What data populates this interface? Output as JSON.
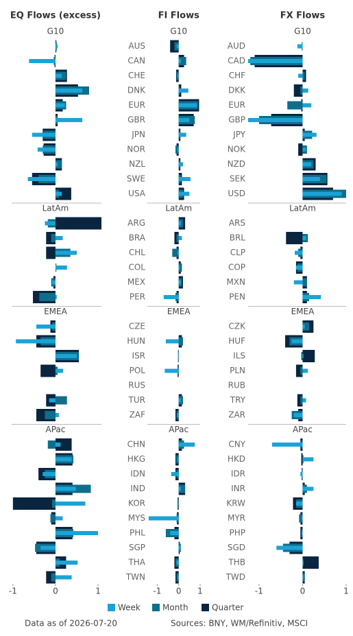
{
  "chart_data": [
    {
      "type": "bar",
      "title": "EQ Flows (excess)",
      "xlim": [
        -1.03,
        1.08
      ],
      "xticks": [
        -1,
        0,
        1
      ],
      "groups": [
        {
          "name": "G10",
          "categories": [
            null,
            null,
            null,
            null,
            null,
            null,
            null,
            null,
            null,
            null,
            null
          ]
        },
        {
          "name": "LatAm",
          "categories": [
            null,
            null,
            null,
            null,
            null,
            null
          ]
        },
        {
          "name": "EMEA",
          "categories": [
            null,
            null,
            null,
            null,
            null,
            null,
            null
          ]
        },
        {
          "name": "APac",
          "categories": [
            null,
            null,
            null,
            null,
            null,
            null,
            null,
            null,
            null,
            null
          ]
        }
      ],
      "series": [
        {
          "color": "#1ba3d6",
          "values": [
            0.05,
            -0.62,
            0.15,
            0.63,
            0.22,
            0.63,
            -0.55,
            -0.42,
            0.05,
            -0.65,
            0.15,
            -0.25,
            0.17,
            0.5,
            0.27,
            -0.08,
            0.03,
            -0.45,
            -0.93,
            0.5,
            0.18,
            0,
            -0.15,
            0.08,
            0.12,
            0.38,
            -0.3,
            0.48,
            0.7,
            0.17,
            1.0,
            -0.35,
            0.52,
            0.38
          ]
        },
        {
          "color": "#0f6e8c",
          "values": [
            0.03,
            -0.04,
            0.25,
            0.79,
            0.25,
            0.05,
            -0.28,
            -0.3,
            0.15,
            -0.4,
            0.08,
            -0.18,
            -0.1,
            0.35,
            0.02,
            -0.1,
            -0.38,
            -0.08,
            -0.35,
            0.55,
            0.05,
            0,
            0.27,
            -0.25,
            -0.18,
            0.42,
            -0.25,
            0.83,
            -0.08,
            -0.12,
            0.42,
            -0.48,
            0.1,
            -0.1
          ]
        },
        {
          "color": "#0a2540",
          "values": [
            0.02,
            -0.02,
            0.27,
            0.53,
            0.17,
            0.05,
            -0.3,
            -0.28,
            0.15,
            -0.55,
            0.37,
            1.08,
            -0.22,
            -0.22,
            0,
            -0.05,
            -0.53,
            -0.12,
            -0.45,
            0.55,
            -0.35,
            0,
            -0.22,
            -0.45,
            0.38,
            0.4,
            -0.4,
            0.4,
            -1.0,
            -0.1,
            0.4,
            -0.45,
            0.25,
            -0.22
          ]
        }
      ]
    },
    {
      "type": "bar",
      "title": "FI Flows",
      "xlim": [
        -1.46,
        1.0
      ],
      "xticks": [
        -1,
        0,
        1
      ],
      "groups": [
        {
          "name": "G10",
          "categories": [
            "AUS",
            "CAN",
            "CHE",
            "DNK",
            "EUR",
            "GBR",
            "JPN",
            "NOR",
            "NZL",
            "SWE",
            "USA"
          ]
        },
        {
          "name": "LatAm",
          "categories": [
            "ARG",
            "BRA",
            "CHL",
            "COL",
            "MEX",
            "PER"
          ]
        },
        {
          "name": "EMEA",
          "categories": [
            "CZE",
            "HUN",
            "ISR",
            "POL",
            "RUS",
            "TUR",
            "ZAF"
          ]
        },
        {
          "name": "APac",
          "categories": [
            "CHN",
            "HKG",
            "IDN",
            "IND",
            "KOR",
            "MYS",
            "PHL",
            "SGP",
            "THA",
            "TWN"
          ]
        }
      ],
      "series": [
        {
          "color": "#1ba3d6",
          "values": [
            -0.1,
            0.1,
            -0.05,
            0.45,
            0.85,
            0.5,
            0.35,
            -0.05,
            0.2,
            0.55,
            0.5,
            0.1,
            0.15,
            -0.05,
            0.05,
            0.1,
            -0.7,
            0,
            -0.6,
            -0.03,
            -0.65,
            0,
            0.1,
            -0.08,
            0.75,
            -0.05,
            -0.35,
            0.1,
            -0.02,
            -1.4,
            -0.4,
            0.1,
            -0.1,
            -0.05
          ]
        },
        {
          "color": "#0f6e8c",
          "values": [
            -0.2,
            0.35,
            -0.1,
            0.05,
            0.9,
            0.75,
            0.05,
            -0.15,
            0.05,
            0.1,
            0.2,
            0.2,
            -0.1,
            -0.3,
            0.15,
            0.15,
            -0.15,
            0,
            0.2,
            -0.02,
            -0.03,
            0,
            0.2,
            -0.1,
            0.25,
            -0.12,
            -0.1,
            0.3,
            -0.03,
            -0.1,
            -0.6,
            0.1,
            -0.15,
            -0.1
          ]
        },
        {
          "color": "#0a2540",
          "values": [
            -0.4,
            0.25,
            -0.12,
            0.12,
            0.95,
            0.7,
            0.08,
            -0.1,
            0.08,
            0.15,
            0.25,
            0.3,
            -0.2,
            -0.1,
            0.1,
            0.2,
            -0.1,
            0,
            0.15,
            -0.03,
            -0.05,
            0,
            0.15,
            -0.15,
            0.15,
            -0.15,
            -0.15,
            0.3,
            -0.05,
            -0.08,
            -0.2,
            0.05,
            -0.2,
            -0.15
          ]
        }
      ]
    },
    {
      "type": "bar",
      "title": "FX Flows",
      "xlim": [
        -1.25,
        1.0
      ],
      "xticks": [
        -1,
        0,
        1
      ],
      "groups": [
        {
          "name": "G10",
          "categories": [
            "AUD",
            "CAD",
            "CHF",
            "DKK",
            "EUR",
            "GBP",
            "JPY",
            "NOK",
            "NZD",
            "SEK",
            "USD"
          ]
        },
        {
          "name": "LatAm",
          "categories": [
            "ARS",
            "BRL",
            "CLP",
            "COP",
            "MXN",
            "PEN"
          ]
        },
        {
          "name": "EMEA",
          "categories": [
            "CZK",
            "HUF",
            "ILS",
            "PLN",
            "RUB",
            "TRY",
            "ZAR"
          ]
        },
        {
          "name": "APac",
          "categories": [
            "CNY",
            "HKD",
            "IDR",
            "INR",
            "KRW",
            "MYR",
            "PHP",
            "SGD",
            "THB",
            "TWD"
          ]
        }
      ],
      "series": [
        {
          "color": "#1ba3d6",
          "values": [
            -0.12,
            -1.25,
            -0.1,
            0.13,
            0.2,
            -1.25,
            0.32,
            0.07,
            0.2,
            0.4,
            0.9,
            0,
            0.08,
            -0.18,
            -0.15,
            -0.2,
            0.42,
            0.05,
            -0.25,
            0.02,
            0.12,
            0,
            0.08,
            -0.2,
            -0.7,
            0.25,
            -0.05,
            0.25,
            -0.15,
            -0.02,
            -0.02,
            -0.6,
            0.02,
            0.02
          ]
        },
        {
          "color": "#0f6e8c",
          "values": [
            -0.02,
            -1.2,
            0.05,
            -0.05,
            -0.35,
            -1.0,
            0.22,
            0.1,
            0.25,
            0.55,
            1.0,
            0,
            0.12,
            -0.1,
            -0.12,
            0.1,
            0.15,
            0.15,
            -0.3,
            -0.03,
            -0.05,
            0,
            -0.05,
            -0.25,
            -0.03,
            0.02,
            -0.02,
            0.1,
            -0.15,
            -0.08,
            -0.03,
            -0.45,
            0.02,
            0.05
          ]
        },
        {
          "color": "#0a2540",
          "values": [
            0,
            -1.1,
            0.08,
            -0.2,
            -0.03,
            -0.72,
            0.05,
            -0.1,
            0.3,
            0.57,
            0.7,
            0,
            -0.38,
            -0.05,
            -0.15,
            0.1,
            0.1,
            0.25,
            -0.4,
            0.28,
            -0.15,
            0,
            -0.12,
            -0.1,
            -0.05,
            -0.03,
            -0.02,
            0.05,
            -0.22,
            -0.05,
            -0.05,
            -0.3,
            0.37,
            0.05
          ]
        }
      ]
    }
  ],
  "legend": [
    {
      "name": "Week",
      "color": "#1ba3d6"
    },
    {
      "name": "Month",
      "color": "#0f6e8c"
    },
    {
      "name": "Quarter",
      "color": "#0a2540"
    }
  ],
  "footer": {
    "as_of": "Data as of 2026-07-20",
    "sources": "Sources:  BNY, WM/Refinitiv, MSCI"
  }
}
